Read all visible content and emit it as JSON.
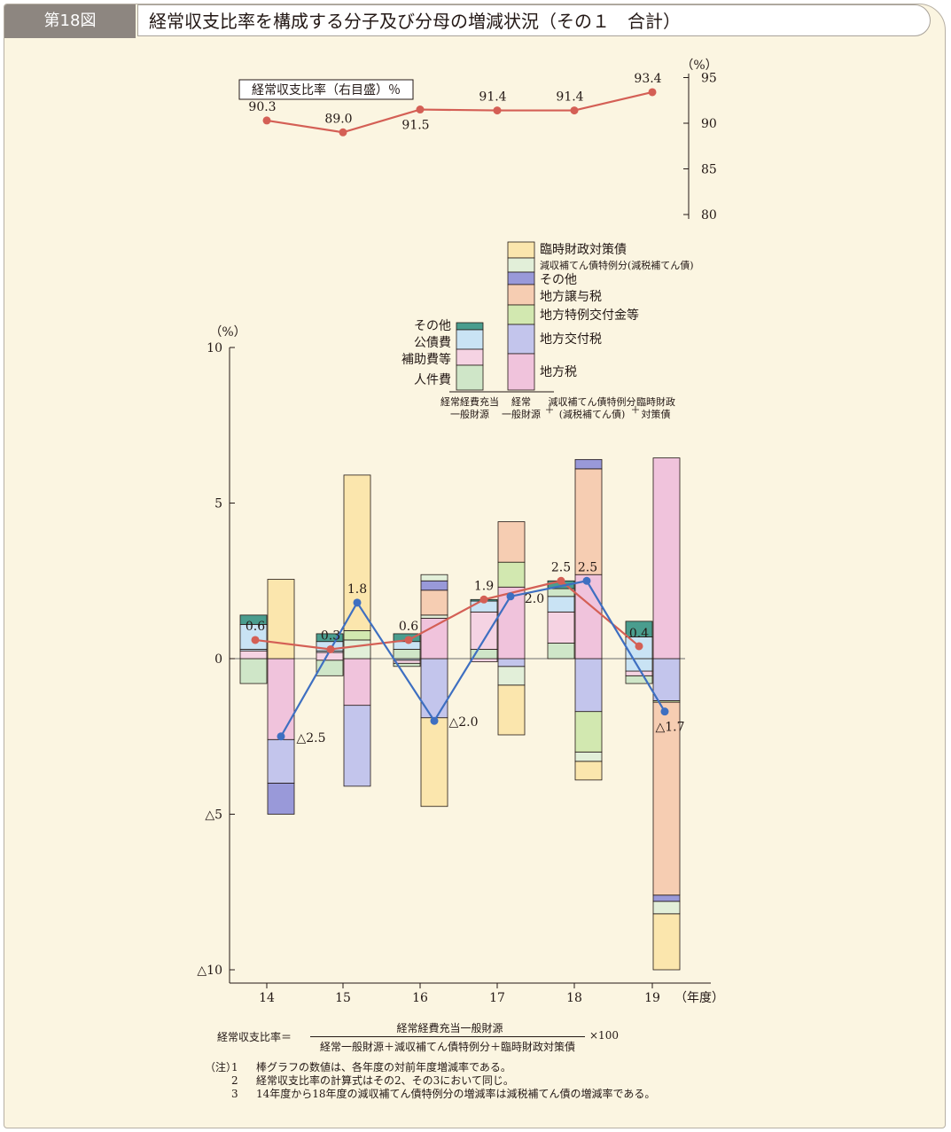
{
  "header": {
    "figure_no": "第18図",
    "title": "経常収支比率を構成する分子及び分母の増減状況（その１　合計）"
  },
  "chart_data": [
    {
      "type": "line",
      "legend_label": "経常収支比率（右目盛）％",
      "y_unit": "（%）",
      "yticks": [
        "95",
        "90",
        "85",
        "80"
      ],
      "ylim": [
        80,
        95
      ],
      "categories": [
        "14",
        "15",
        "16",
        "17",
        "18",
        "19"
      ],
      "values": [
        90.3,
        89.0,
        91.5,
        91.4,
        91.4,
        93.4
      ],
      "value_labels": [
        "90.3",
        "89.0",
        "91.5",
        "91.4",
        "91.4",
        "93.4"
      ],
      "color": "#d45f55"
    },
    {
      "type": "bar",
      "stacked": true,
      "y_unit": "（%）",
      "yticks": [
        "10",
        "5",
        "0",
        "△5",
        "△10"
      ],
      "ylim": [
        -10,
        10
      ],
      "categories": [
        "14",
        "15",
        "16",
        "17",
        "18",
        "19"
      ],
      "x_suffix": "（年度）",
      "numerator_components": [
        "人件費",
        "補助費等",
        "公債費",
        "その他"
      ],
      "denominator_components": [
        "地方税",
        "地方交付税",
        "地方特例交付金等",
        "地方譲与税",
        "その他",
        "減収補てん債特例分(減税補てん債)",
        "臨時財政対策債"
      ],
      "component_colors": {
        "人件費": "#cfe6c8",
        "補助費等": "#f5d3e3",
        "公債費": "#c9e3f4",
        "その他_num": "#4a9d8e",
        "地方税": "#f0c3dc",
        "地方交付税": "#c3c5ec",
        "地方特例交付金等": "#d2e8b0",
        "地方譲与税": "#f6cdb2",
        "その他_den": "#9999d9",
        "減収補てん債特例分": "#e2efd9",
        "臨時財政対策債": "#fbe6ad"
      },
      "numerator_bars": [
        [
          [
            -0.8,
            0
          ],
          [
            0,
            0.25
          ],
          [
            0.25,
            0.3
          ],
          [
            0.3,
            1.1
          ],
          [
            1.1,
            1.4
          ]
        ],
        [
          [
            -0.55,
            -0.05
          ],
          [
            -0.05,
            0.2
          ],
          [
            0.2,
            0.25
          ],
          [
            0.25,
            0.55
          ],
          [
            0.55,
            0.8
          ]
        ],
        [
          [
            -0.25,
            -0.15
          ],
          [
            -0.15,
            -0.05
          ],
          [
            -0.05,
            0
          ],
          [
            0,
            0.3
          ],
          [
            0.3,
            0.55
          ],
          [
            0.55,
            0.8
          ]
        ],
        [
          [
            -0.1,
            0
          ],
          [
            0,
            0.3
          ],
          [
            0.3,
            1.5
          ],
          [
            1.5,
            1.85
          ],
          [
            1.85,
            1.9
          ]
        ],
        [
          [
            0,
            0.5
          ],
          [
            0.5,
            1.5
          ],
          [
            1.5,
            2.0
          ],
          [
            2.0,
            2.25
          ],
          [
            2.25,
            2.5
          ]
        ],
        [
          [
            -0.8,
            -0.55
          ],
          [
            -0.55,
            -0.4
          ],
          [
            -0.4,
            0
          ],
          [
            0,
            0.7
          ],
          [
            0.7,
            1.2
          ]
        ]
      ],
      "denominator_bars": [
        [
          [
            -5.0,
            -4.0
          ],
          [
            -4.0,
            -2.6
          ],
          [
            -2.6,
            0
          ],
          [
            0,
            2.55
          ]
        ],
        [
          [
            -4.1,
            -1.5
          ],
          [
            -1.5,
            0
          ],
          [
            0,
            0.6
          ],
          [
            0.6,
            0.9
          ],
          [
            0.9,
            5.9
          ]
        ],
        [
          [
            -4.75,
            -1.9
          ],
          [
            -1.9,
            0
          ],
          [
            0,
            1.3
          ],
          [
            1.3,
            1.4
          ],
          [
            1.4,
            2.2
          ],
          [
            2.2,
            2.5
          ],
          [
            2.5,
            2.7
          ]
        ],
        [
          [
            -2.45,
            -0.85
          ],
          [
            -0.85,
            -0.25
          ],
          [
            -0.25,
            0
          ],
          [
            0,
            2.3
          ],
          [
            2.3,
            3.1
          ],
          [
            3.1,
            4.4
          ]
        ],
        [
          [
            -3.9,
            -3.3
          ],
          [
            -3.3,
            -3.0
          ],
          [
            -3.0,
            -1.7
          ],
          [
            -1.7,
            0
          ],
          [
            0,
            2.7
          ],
          [
            2.7,
            6.1
          ],
          [
            6.1,
            6.4
          ]
        ],
        [
          [
            -10.0,
            -8.2
          ],
          [
            -8.2,
            -7.8
          ],
          [
            -7.8,
            -7.6
          ],
          [
            -7.6,
            -1.4
          ],
          [
            -1.4,
            -1.35
          ],
          [
            -1.35,
            0
          ],
          [
            0,
            6.45
          ]
        ]
      ],
      "series": [
        {
          "name": "経常経費充当一般財源",
          "values": [
            0.6,
            0.3,
            0.6,
            1.9,
            2.5,
            0.4
          ],
          "labels": [
            "0.6",
            "0.3",
            "0.6",
            "1.9",
            "2.5",
            "0.4"
          ],
          "color": "#d45f55"
        },
        {
          "name": "経常一般財源＋減収補てん債特例分＋臨時財政対策債",
          "values": [
            -2.5,
            1.8,
            -2.0,
            2.0,
            2.5,
            -1.7
          ],
          "labels": [
            "△2.5",
            "1.8",
            "△2.0",
            "2.0",
            "2.5",
            "△1.7"
          ],
          "color": "#3e6fc1"
        }
      ],
      "legend": {
        "left_items": [
          "その他",
          "公債費",
          "補助費等",
          "人件費"
        ],
        "right_items": [
          "臨時財政対策債",
          "減収補てん債特例分(減税補てん債)",
          "その他",
          "地方譲与税",
          "地方特例交付金等",
          "地方交付税",
          "地方税"
        ],
        "bottom_left": [
          "経常経費充当",
          "一般財源"
        ],
        "bottom_mid": [
          "経常",
          "一般財源"
        ],
        "bottom_right1": [
          "減収補てん債特例分",
          "(減税補てん債)"
        ],
        "bottom_right2": [
          "臨時財政",
          "対策債"
        ],
        "plus": "＋"
      }
    }
  ],
  "formula": {
    "lhs": "経常収支比率＝",
    "numerator": "経常経費充当一般財源",
    "denominator": "経常一般財源＋減収補てん債特例分＋臨時財政対策債",
    "multiplier": "×100"
  },
  "notes": {
    "label": "（注）",
    "items": [
      {
        "no": "1",
        "text": "棒グラフの数値は、各年度の対前年度増減率である。"
      },
      {
        "no": "2",
        "text": "経常収支比率の計算式はその2、その3において同じ。"
      },
      {
        "no": "3",
        "text": "14年度から18年度の減収補てん債特例分の増減率は減税補てん債の増減率である。"
      }
    ]
  }
}
